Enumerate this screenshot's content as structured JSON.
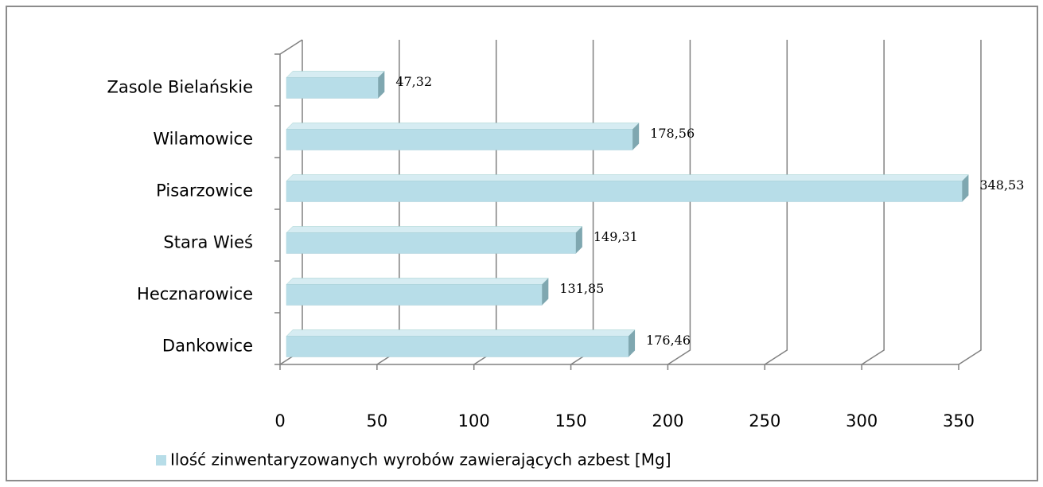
{
  "chart_data": {
    "type": "bar",
    "orientation": "horizontal",
    "categories": [
      "Zasole Bielańskie",
      "Wilamowice",
      "Pisarzowice",
      "Stara Wieś",
      "Hecznarowice",
      "Dankowice"
    ],
    "series": [
      {
        "name": "Ilość zinwentaryzowanych wyrobów zawierających azbest [Mg]",
        "color": "#b7dde8",
        "values": [
          47.32,
          178.56,
          348.53,
          149.31,
          131.85,
          176.46
        ],
        "value_labels": [
          "47,32",
          "178,56",
          "348,53",
          "149,31",
          "131,85",
          "176,46"
        ]
      }
    ],
    "xlim": [
      0,
      350
    ],
    "xticks": [
      0,
      50,
      100,
      150,
      200,
      250,
      300,
      350
    ],
    "grid": true,
    "legend": "bottom"
  }
}
